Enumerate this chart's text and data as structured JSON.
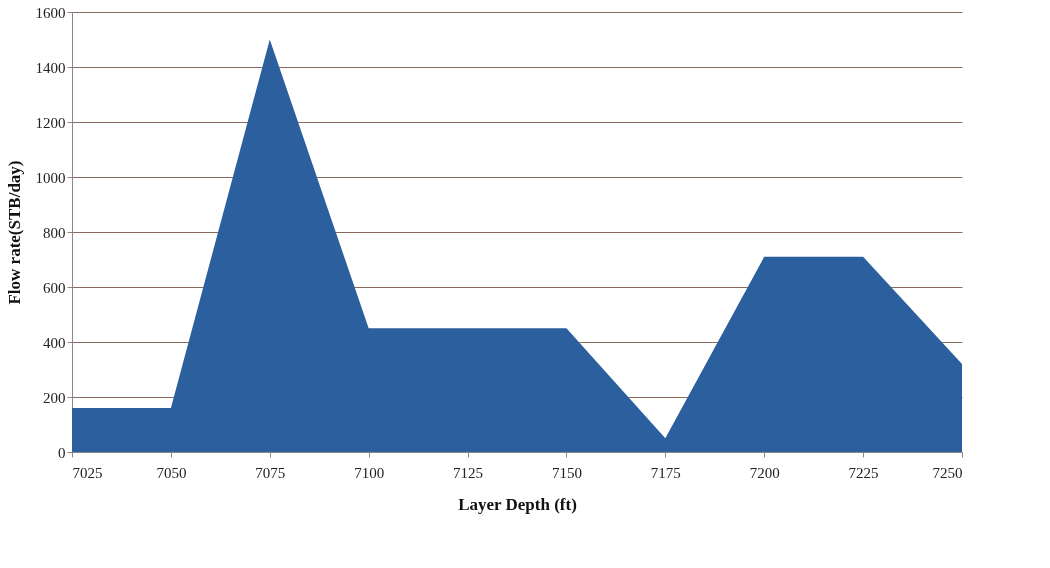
{
  "chart_data": {
    "type": "area",
    "xlabel": "Layer Depth (ft)",
    "ylabel": "Flow rate(STB/day)",
    "x": [
      7025,
      7050,
      7075,
      7100,
      7125,
      7150,
      7175,
      7200,
      7225,
      7250
    ],
    "series": [
      {
        "color": "#2b5f9e",
        "values": [
          160,
          160,
          1500,
          450,
          450,
          450,
          50,
          710,
          710,
          320
        ]
      }
    ],
    "xlim": [
      7025,
      7250
    ],
    "xticks": [
      7025,
      7050,
      7075,
      7100,
      7125,
      7150,
      7175,
      7200,
      7225,
      7250
    ],
    "ylim": [
      0,
      1600
    ],
    "yticks": [
      0,
      200,
      400,
      600,
      800,
      1000,
      1200,
      1400,
      1600
    ],
    "grid": "y",
    "legend": false
  }
}
